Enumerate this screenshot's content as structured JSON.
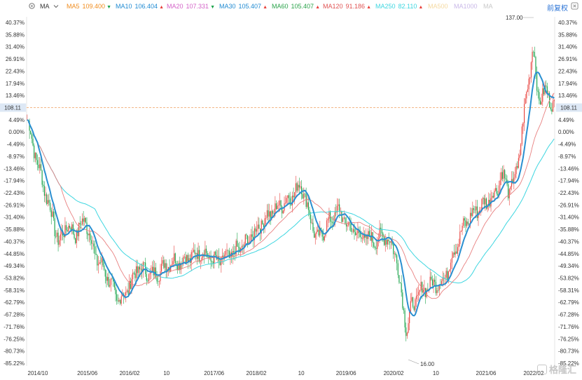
{
  "toolbar": {
    "ma_label": "MA",
    "ma_items": [
      {
        "name": "MA5",
        "value": "109.400",
        "color": "#f08c1e",
        "trend": "down"
      },
      {
        "name": "MA10",
        "value": "106.404",
        "color": "#1f8ad2",
        "trend": "up"
      },
      {
        "name": "MA20",
        "value": "107.331",
        "color": "#d463c8",
        "trend": "down"
      },
      {
        "name": "MA30",
        "value": "105.407",
        "color": "#1f8ad2",
        "trend": "up"
      },
      {
        "name": "MA60",
        "value": "105.407",
        "color": "#2aa34a",
        "trend": "up"
      },
      {
        "name": "MA120",
        "value": "91.186",
        "color": "#e05353",
        "trend": "up"
      },
      {
        "name": "MA250",
        "value": "82.110",
        "color": "#3dd6e0",
        "trend": "up"
      },
      {
        "name": "MA500",
        "value": "",
        "color": "#f5d9a0",
        "trend": ""
      },
      {
        "name": "MA1000",
        "value": "",
        "color": "#c9b8e8",
        "trend": ""
      },
      {
        "name": "MA",
        "value": "",
        "color": "#c8c8c8",
        "trend": ""
      }
    ],
    "adjust_label": "前复权",
    "colors": {
      "up": "#e8413c",
      "down": "#1aa34a"
    }
  },
  "chart_data": {
    "type": "candlestick",
    "y_axis_left": [
      "40.37%",
      "35.88%",
      "31.40%",
      "26.91%",
      "22.43%",
      "17.94%",
      "13.46%",
      "8.97%",
      "4.49%",
      "0.00%",
      "-4.49%",
      "-8.97%",
      "-13.46%",
      "-17.94%",
      "-22.43%",
      "-26.91%",
      "-31.40%",
      "-35.88%",
      "-40.37%",
      "-44.85%",
      "-49.34%",
      "-53.82%",
      "-58.31%",
      "-62.79%",
      "-67.28%",
      "-71.76%",
      "-76.25%",
      "-80.73%",
      "-85.22%"
    ],
    "y_axis_right": [
      "40.37%",
      "35.88%",
      "31.40%",
      "26.91%",
      "22.43%",
      "17.94%",
      "13.46%",
      "8.97%",
      "4.49%",
      "0.00%",
      "-4.49%",
      "-8.97%",
      "-13.46%",
      "-17.94%",
      "-22.43%",
      "-26.91%",
      "-31.40%",
      "-35.88%",
      "-40.37%",
      "-44.85%",
      "-49.34%",
      "-53.82%",
      "-58.31%",
      "-62.79%",
      "-67.28%",
      "-71.76%",
      "-76.25%",
      "-80.73%",
      "-85.22%"
    ],
    "x_axis_labels": [
      "2014/10",
      "2015/06",
      "2016/02",
      "10",
      "2017/06",
      "2018/02",
      "10",
      "2019/06",
      "2020/02",
      "10",
      "2021/06",
      "2022/02"
    ],
    "current_price": "108.11",
    "max_label": "137.00",
    "min_label": "16.00",
    "ylim": [
      -85.22,
      40.37
    ],
    "key_points": [
      {
        "t": 0.0,
        "v": 4.5
      },
      {
        "t": 0.02,
        "v": -12.0
      },
      {
        "t": 0.04,
        "v": -26.0
      },
      {
        "t": 0.06,
        "v": -41.0
      },
      {
        "t": 0.075,
        "v": -34.0
      },
      {
        "t": 0.09,
        "v": -38.0
      },
      {
        "t": 0.11,
        "v": -32.0
      },
      {
        "t": 0.13,
        "v": -46.0
      },
      {
        "t": 0.15,
        "v": -52.0
      },
      {
        "t": 0.17,
        "v": -62.0
      },
      {
        "t": 0.185,
        "v": -60.0
      },
      {
        "t": 0.21,
        "v": -50.0
      },
      {
        "t": 0.24,
        "v": -53.0
      },
      {
        "t": 0.27,
        "v": -48.0
      },
      {
        "t": 0.3,
        "v": -47.0
      },
      {
        "t": 0.33,
        "v": -44.0
      },
      {
        "t": 0.36,
        "v": -48.0
      },
      {
        "t": 0.39,
        "v": -45.0
      },
      {
        "t": 0.42,
        "v": -40.0
      },
      {
        "t": 0.45,
        "v": -32.0
      },
      {
        "t": 0.48,
        "v": -27.0
      },
      {
        "t": 0.5,
        "v": -24.0
      },
      {
        "t": 0.52,
        "v": -19.0
      },
      {
        "t": 0.535,
        "v": -30.0
      },
      {
        "t": 0.55,
        "v": -40.0
      },
      {
        "t": 0.57,
        "v": -34.0
      },
      {
        "t": 0.59,
        "v": -29.0
      },
      {
        "t": 0.61,
        "v": -35.0
      },
      {
        "t": 0.63,
        "v": -38.0
      },
      {
        "t": 0.66,
        "v": -40.0
      },
      {
        "t": 0.68,
        "v": -38.0
      },
      {
        "t": 0.7,
        "v": -45.0
      },
      {
        "t": 0.71,
        "v": -60.0
      },
      {
        "t": 0.72,
        "v": -73.0
      },
      {
        "t": 0.73,
        "v": -64.0
      },
      {
        "t": 0.75,
        "v": -58.0
      },
      {
        "t": 0.77,
        "v": -56.0
      },
      {
        "t": 0.79,
        "v": -55.0
      },
      {
        "t": 0.81,
        "v": -44.0
      },
      {
        "t": 0.83,
        "v": -34.0
      },
      {
        "t": 0.85,
        "v": -29.0
      },
      {
        "t": 0.87,
        "v": -26.0
      },
      {
        "t": 0.89,
        "v": -22.0
      },
      {
        "t": 0.9,
        "v": -15.0
      },
      {
        "t": 0.915,
        "v": -22.0
      },
      {
        "t": 0.93,
        "v": -14.0
      },
      {
        "t": 0.945,
        "v": 10.0
      },
      {
        "t": 0.96,
        "v": 32.0
      },
      {
        "t": 0.97,
        "v": 12.0
      },
      {
        "t": 0.985,
        "v": 15.0
      },
      {
        "t": 1.0,
        "v": 8.97
      }
    ]
  },
  "watermark": "格隆汇"
}
